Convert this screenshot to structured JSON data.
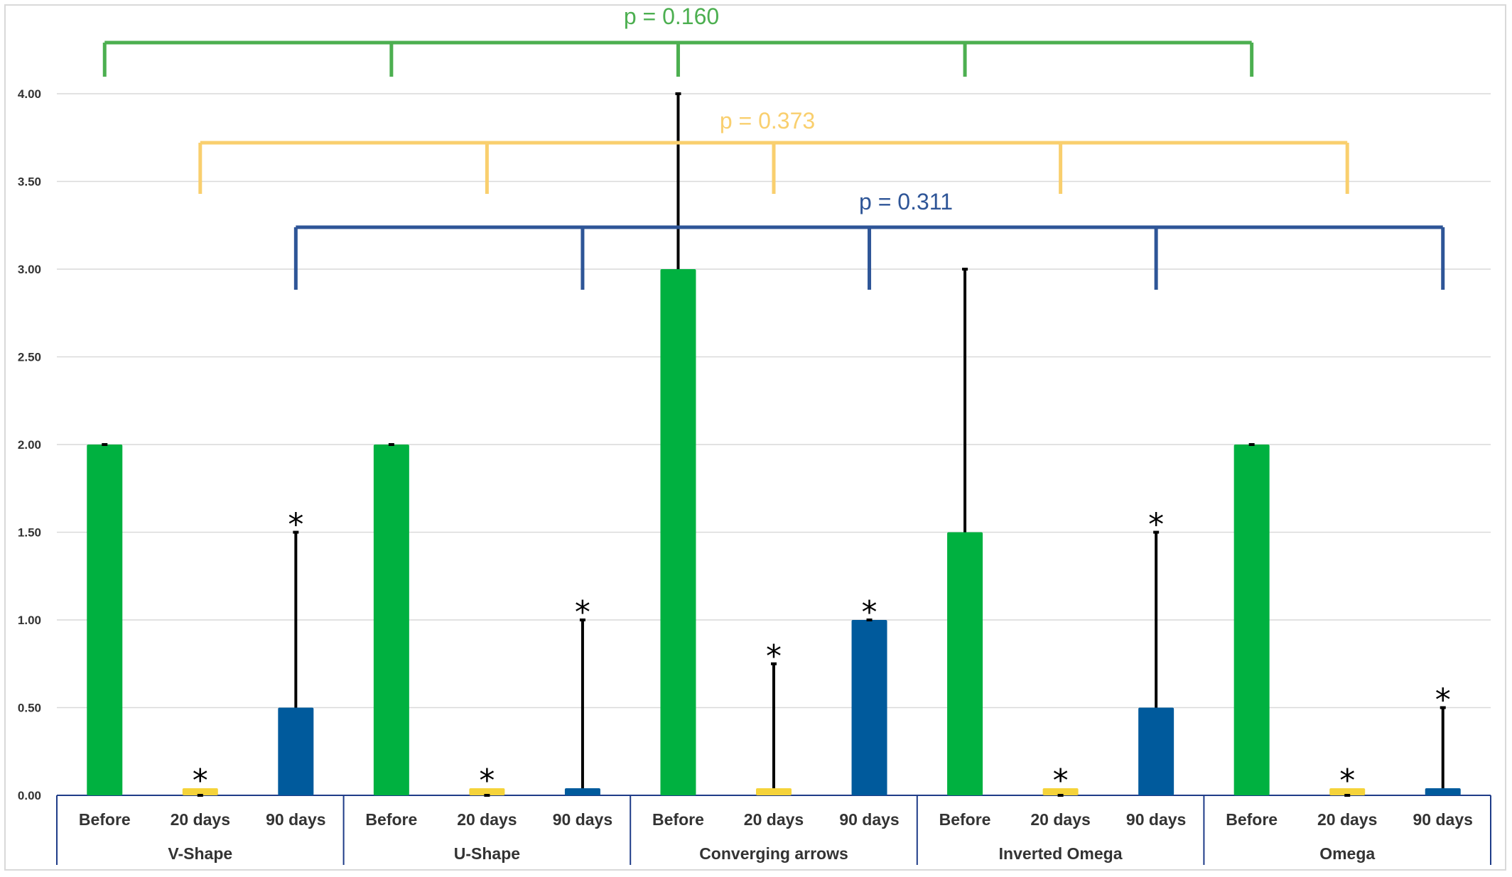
{
  "chart_data": {
    "type": "bar",
    "title": "",
    "xlabel": "",
    "ylabel": "",
    "ylim": [
      0,
      4
    ],
    "yticks": [
      "0.00",
      "0.50",
      "1.00",
      "1.50",
      "2.00",
      "2.50",
      "3.00",
      "3.50",
      "4.00"
    ],
    "grid": true,
    "groups": [
      "V-Shape",
      "U-Shape",
      "Converging arrows",
      "Inverted Omega",
      "Omega"
    ],
    "timepoints": [
      "Before",
      "20 days",
      "90 days"
    ],
    "colors": {
      "Before": "#00b140",
      "20 days": "#f5d33a",
      "90 days": "#005a9c"
    },
    "bars": [
      {
        "group": "V-Shape",
        "timepoint": "Before",
        "value": 2.0,
        "error_upper": 2.0,
        "star": false
      },
      {
        "group": "V-Shape",
        "timepoint": "20 days",
        "value": 0.0,
        "error_upper": 0.0,
        "star": true
      },
      {
        "group": "V-Shape",
        "timepoint": "90 days",
        "value": 0.5,
        "error_upper": 1.5,
        "star": true
      },
      {
        "group": "U-Shape",
        "timepoint": "Before",
        "value": 2.0,
        "error_upper": 2.0,
        "star": false
      },
      {
        "group": "U-Shape",
        "timepoint": "20 days",
        "value": 0.0,
        "error_upper": 0.0,
        "star": true
      },
      {
        "group": "U-Shape",
        "timepoint": "90 days",
        "value": 0.0,
        "error_upper": 1.0,
        "star": true
      },
      {
        "group": "Converging arrows",
        "timepoint": "Before",
        "value": 3.0,
        "error_upper": 4.0,
        "star": false
      },
      {
        "group": "Converging arrows",
        "timepoint": "20 days",
        "value": 0.0,
        "error_upper": 0.75,
        "star": true
      },
      {
        "group": "Converging arrows",
        "timepoint": "90 days",
        "value": 1.0,
        "error_upper": 1.0,
        "star": true
      },
      {
        "group": "Inverted Omega",
        "timepoint": "Before",
        "value": 1.5,
        "error_upper": 3.0,
        "star": false
      },
      {
        "group": "Inverted Omega",
        "timepoint": "20 days",
        "value": 0.0,
        "error_upper": 0.0,
        "star": true
      },
      {
        "group": "Inverted Omega",
        "timepoint": "90 days",
        "value": 0.5,
        "error_upper": 1.5,
        "star": true
      },
      {
        "group": "Omega",
        "timepoint": "Before",
        "value": 2.0,
        "error_upper": 2.0,
        "star": false
      },
      {
        "group": "Omega",
        "timepoint": "20 days",
        "value": 0.0,
        "error_upper": 0.0,
        "star": true
      },
      {
        "group": "Omega",
        "timepoint": "90 days",
        "value": 0.0,
        "error_upper": 0.5,
        "star": true
      }
    ],
    "star_symbol": "*",
    "comparisons": [
      {
        "timepoint": "Before",
        "label": "p = 0.160",
        "color": "#4caf50"
      },
      {
        "timepoint": "20 days",
        "label": "p = 0.373",
        "color": "#f9cf6e"
      },
      {
        "timepoint": "90 days",
        "label": "p = 0.311",
        "color": "#2e5597"
      }
    ]
  }
}
